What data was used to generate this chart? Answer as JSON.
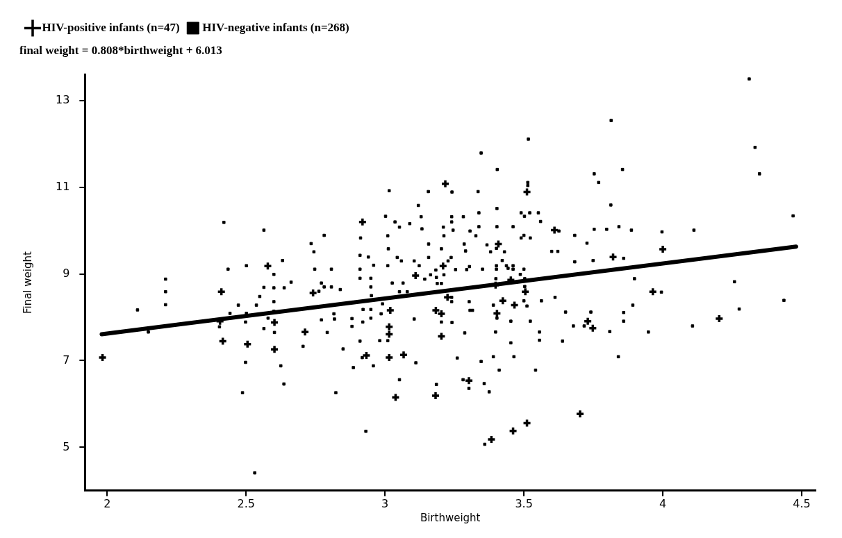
{
  "chart_data": {
    "type": "scatter",
    "subtitle": "final weight = 0.808*birthweight + 6.013",
    "xlabel": "Birthweight",
    "ylabel": "Final weight",
    "xlim": [
      1.92,
      4.55
    ],
    "xticks": [
      2,
      2.5,
      3,
      3.5,
      4,
      4.5
    ],
    "ylim": [
      4,
      13.6
    ],
    "yticks": [
      5,
      7,
      9,
      11,
      13
    ],
    "grid": false,
    "legend": "top left",
    "series": [
      {
        "name": "HIV-positive infants (n=47)",
        "color": "#000000",
        "marker": "cross",
        "x": [
          2.578,
          2.411,
          2.406,
          2.602,
          2.416,
          2.505,
          2.602,
          1.983,
          2.712,
          2.741,
          2.919,
          2.933,
          3.015,
          3.015,
          3.019,
          3.015,
          3.209,
          3.217,
          3.225,
          3.183,
          3.203,
          3.203,
          3.067,
          3.038,
          3.182,
          3.302,
          3.11,
          3.383,
          3.408,
          3.398,
          3.453,
          3.511,
          3.61,
          3.505,
          3.424,
          3.466,
          3.403,
          3.73,
          3.748,
          3.461,
          3.511,
          3.702,
          3.821,
          3.964,
          4.0,
          4.203
        ],
        "values": [
          9.18,
          8.59,
          7.91,
          7.88,
          7.45,
          7.38,
          7.26,
          7.07,
          7.66,
          8.56,
          10.2,
          7.12,
          7.61,
          7.78,
          8.16,
          7.07,
          9.18,
          11.08,
          8.46,
          8.16,
          8.08,
          7.56,
          7.13,
          6.15,
          6.19,
          6.54,
          8.96,
          5.18,
          9.69,
          8.74,
          8.86,
          10.89,
          10.01,
          8.59,
          8.38,
          8.28,
          8.09,
          7.91,
          7.75,
          5.38,
          5.56,
          5.77,
          9.39,
          8.59,
          9.57,
          7.97
        ]
      },
      {
        "name": "HIV-negative infants (n=268)",
        "color": "#000000",
        "marker": "square",
        "x": [
          2.42,
          2.564,
          2.631,
          2.435,
          2.501,
          2.21,
          2.21,
          2.21,
          2.109,
          2.472,
          2.442,
          2.501,
          2.537,
          2.549,
          2.564,
          2.6,
          2.6,
          2.637,
          2.662,
          2.6,
          2.579,
          2.6,
          2.404,
          2.498,
          2.564,
          2.602,
          2.148,
          2.498,
          2.625,
          2.636,
          2.487,
          2.531,
          2.705,
          2.734,
          2.744,
          2.781,
          2.747,
          2.807,
          2.762,
          2.771,
          2.781,
          2.807,
          2.839,
          2.771,
          2.792,
          2.816,
          2.818,
          2.849,
          2.823,
          2.881,
          2.881,
          2.886,
          2.91,
          2.912,
          2.91,
          2.91,
          2.91,
          2.94,
          2.949,
          2.949,
          2.959,
          2.92,
          2.921,
          2.949,
          2.949,
          2.918,
          2.958,
          2.931,
          3.015,
          3.002,
          3.01,
          3.012,
          3.01,
          2.951,
          2.986,
          2.981,
          3.01,
          2.991,
          3.036,
          3.052,
          3.044,
          3.059,
          3.026,
          3.065,
          3.052,
          3.08,
          3.089,
          3.105,
          3.12,
          3.13,
          3.133,
          3.123,
          3.143,
          3.156,
          3.157,
          3.157,
          3.164,
          3.183,
          3.185,
          3.188,
          3.203,
          3.212,
          3.21,
          3.203,
          3.212,
          3.241,
          3.24,
          3.24,
          3.245,
          3.227,
          3.238,
          3.254,
          3.24,
          3.24,
          3.203,
          3.241,
          3.105,
          3.111,
          3.052,
          3.185,
          3.26,
          3.282,
          3.285,
          3.29,
          3.294,
          3.304,
          3.306,
          3.303,
          3.306,
          3.315,
          3.287,
          3.327,
          3.335,
          3.281,
          3.302,
          3.346,
          3.338,
          3.338,
          3.346,
          3.357,
          3.375,
          3.359,
          3.404,
          3.403,
          3.403,
          3.367,
          3.38,
          3.401,
          3.43,
          3.422,
          3.351,
          3.401,
          3.401,
          3.437,
          3.461,
          3.443,
          3.461,
          3.487,
          3.399,
          3.5,
          3.503,
          3.461,
          3.516,
          3.514,
          3.514,
          3.49,
          3.502,
          3.521,
          3.552,
          3.56,
          3.5,
          3.49,
          3.523,
          3.626,
          3.6,
          3.622,
          3.503,
          3.5,
          3.511,
          3.39,
          3.403,
          3.453,
          3.523,
          3.398,
          3.453,
          3.556,
          3.556,
          3.563,
          3.612,
          3.65,
          3.639,
          3.678,
          3.717,
          3.741,
          3.39,
          3.464,
          3.411,
          3.542,
          3.683,
          3.683,
          3.727,
          3.749,
          3.753,
          3.769,
          3.753,
          3.798,
          3.814,
          3.813,
          3.842,
          3.859,
          3.855,
          3.887,
          3.898,
          3.809,
          3.84,
          3.859,
          3.859,
          3.892,
          3.948,
          3.995,
          3.997,
          4.112,
          4.107,
          4.258,
          4.275,
          4.332,
          4.348,
          4.436,
          4.469,
          4.311
        ],
        "values": [
          10.19,
          10.01,
          9.31,
          9.11,
          9.19,
          8.88,
          8.59,
          8.29,
          8.17,
          8.28,
          8.09,
          8.09,
          8.28,
          8.48,
          8.69,
          8.99,
          8.68,
          8.68,
          8.81,
          8.36,
          7.98,
          8.14,
          7.78,
          7.89,
          7.74,
          7.65,
          7.66,
          6.96,
          6.88,
          6.46,
          6.26,
          4.41,
          7.33,
          9.7,
          9.51,
          9.89,
          9.11,
          9.11,
          8.6,
          8.79,
          8.7,
          8.7,
          8.64,
          7.94,
          7.65,
          8.08,
          7.96,
          7.27,
          6.26,
          7.97,
          7.79,
          6.84,
          7.45,
          9.83,
          9.43,
          9.11,
          8.9,
          9.39,
          8.9,
          8.7,
          9.2,
          7.89,
          8.18,
          8.18,
          7.98,
          7.07,
          6.88,
          5.37,
          10.92,
          10.33,
          9.88,
          9.58,
          9.19,
          8.5,
          8.08,
          7.46,
          7.46,
          8.31,
          10.2,
          10.08,
          9.38,
          9.3,
          8.79,
          8.79,
          8.59,
          8.59,
          10.16,
          9.3,
          10.58,
          10.32,
          10.04,
          9.19,
          8.88,
          10.9,
          9.69,
          9.38,
          8.98,
          9.09,
          8.92,
          8.78,
          9.58,
          9.88,
          10.08,
          8.78,
          8.98,
          10.89,
          10.32,
          10.2,
          10.01,
          9.3,
          9.38,
          9.1,
          8.46,
          8.36,
          7.89,
          7.88,
          7.96,
          6.95,
          6.56,
          6.45,
          7.06,
          10.32,
          9.69,
          9.53,
          9.1,
          9.17,
          9.99,
          8.36,
          8.16,
          8.16,
          7.64,
          9.88,
          10.9,
          6.56,
          6.36,
          11.79,
          10.41,
          10.09,
          6.98,
          6.47,
          6.28,
          5.07,
          11.41,
          10.51,
          10.09,
          9.67,
          9.51,
          9.59,
          9.51,
          9.31,
          9.11,
          9.19,
          9.11,
          9.19,
          9.19,
          9.13,
          9.11,
          8.99,
          8.89,
          9.11,
          8.89,
          10.09,
          12.11,
          11.11,
          11.04,
          10.41,
          10.33,
          10.41,
          10.41,
          10.21,
          9.89,
          9.83,
          9.83,
          9.99,
          9.52,
          9.52,
          8.71,
          8.38,
          8.26,
          8.28,
          7.98,
          7.91,
          7.91,
          7.66,
          7.41,
          7.66,
          7.47,
          8.38,
          8.46,
          8.12,
          7.45,
          7.8,
          7.8,
          8.12,
          7.09,
          7.09,
          6.78,
          6.78,
          9.89,
          9.28,
          9.71,
          9.31,
          11.31,
          11.11,
          10.03,
          10.03,
          12.54,
          10.59,
          10.09,
          9.36,
          11.41,
          10.01,
          8.89,
          7.67,
          7.09,
          8.11,
          7.91,
          8.28,
          7.66,
          8.58,
          9.97,
          10.01,
          7.8,
          8.82,
          8.19,
          11.92,
          11.31,
          8.39,
          10.34,
          13.5
        ]
      },
      {
        "type": "line",
        "color": "#000000",
        "x": [
          1.98,
          4.48
        ],
        "values": [
          7.61,
          9.63
        ]
      }
    ]
  }
}
